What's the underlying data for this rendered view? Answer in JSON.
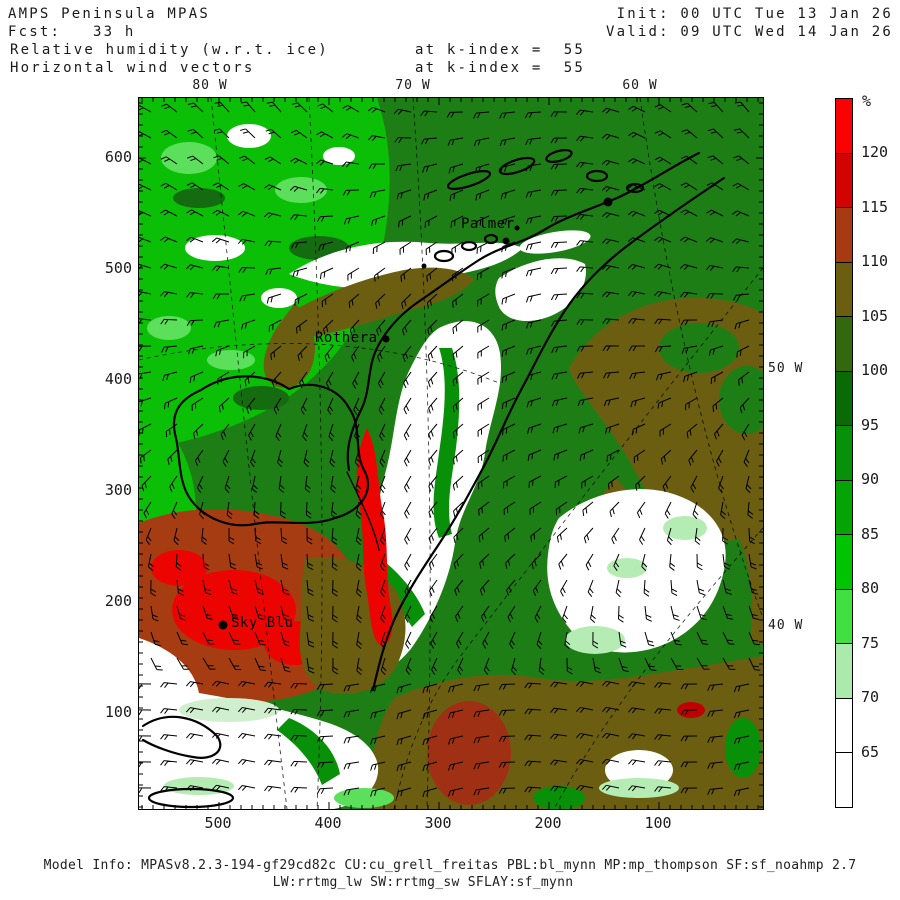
{
  "header": {
    "title": "AMPS Peninsula MPAS",
    "fcst": "Fcst:   33 h",
    "field1": "Relative humidity (w.r.t. ice)",
    "field2": "Horizontal wind vectors",
    "level1": "at k-index =  55",
    "level2": "at k-index =  55",
    "init": "Init: 00 UTC Tue 13 Jan 26",
    "valid": "Valid: 09 UTC Wed 14 Jan 26"
  },
  "footer": {
    "line1": "Model Info: MPASv8.2.3-194-gf29cd82c CU:cu_grell_freitas PBL:bl_mynn MP:mp_thompson SF:sf_noahmp 2.7",
    "line2": "LW:rrtmg_lw SW:rrtmg_sw SFLAY:sf_mynn"
  },
  "chart_data": {
    "type": "heatmap",
    "title": "Relative humidity (w.r.t. ice) at k-index = 55",
    "overlay": "Horizontal wind vectors at k-index = 55",
    "model": "AMPS Peninsula MPAS",
    "forecast_hour": 33,
    "init_time": "00 UTC Tue 13 Jan 26",
    "valid_time": "09 UTC Wed 14 Jan 26",
    "units": "%",
    "x_ticks": [
      500,
      400,
      300,
      200,
      100
    ],
    "y_ticks": [
      600,
      500,
      400,
      300,
      200,
      100
    ],
    "lon_labels_top": [
      "80 W",
      "70 W",
      "60 W"
    ],
    "lon_labels_right": [
      "50 W",
      "40 W"
    ],
    "colorbar": {
      "unit": "%",
      "ticks": [
        120,
        115,
        110,
        105,
        100,
        95,
        90,
        85,
        80,
        75,
        70,
        65
      ],
      "segments": [
        {
          "range": ">120",
          "color": "#FB0202"
        },
        {
          "range": "115-120",
          "color": "#D20402"
        },
        {
          "range": "110-115",
          "color": "#A63A12"
        },
        {
          "range": "105-110",
          "color": "#6B5E10"
        },
        {
          "range": "100-105",
          "color": "#32690F"
        },
        {
          "range": "95-100",
          "color": "#0A6B06"
        },
        {
          "range": "90-95",
          "color": "#089108"
        },
        {
          "range": "85-90",
          "color": "#04A404"
        },
        {
          "range": "80-85",
          "color": "#00C400"
        },
        {
          "range": "75-80",
          "color": "#40E040"
        },
        {
          "range": "70-75",
          "color": "#ACEAAC"
        },
        {
          "range": "65-70",
          "color": "#FFFFFF"
        },
        {
          "range": "<65",
          "color": "#FFFFFF"
        }
      ]
    },
    "stations": [
      {
        "name": "Palmer"
      },
      {
        "name": "Rothera"
      },
      {
        "name": "Sky Blu"
      }
    ],
    "wind": {
      "symbol": "barb",
      "spacing": 26,
      "shaft_length": 13
    }
  }
}
